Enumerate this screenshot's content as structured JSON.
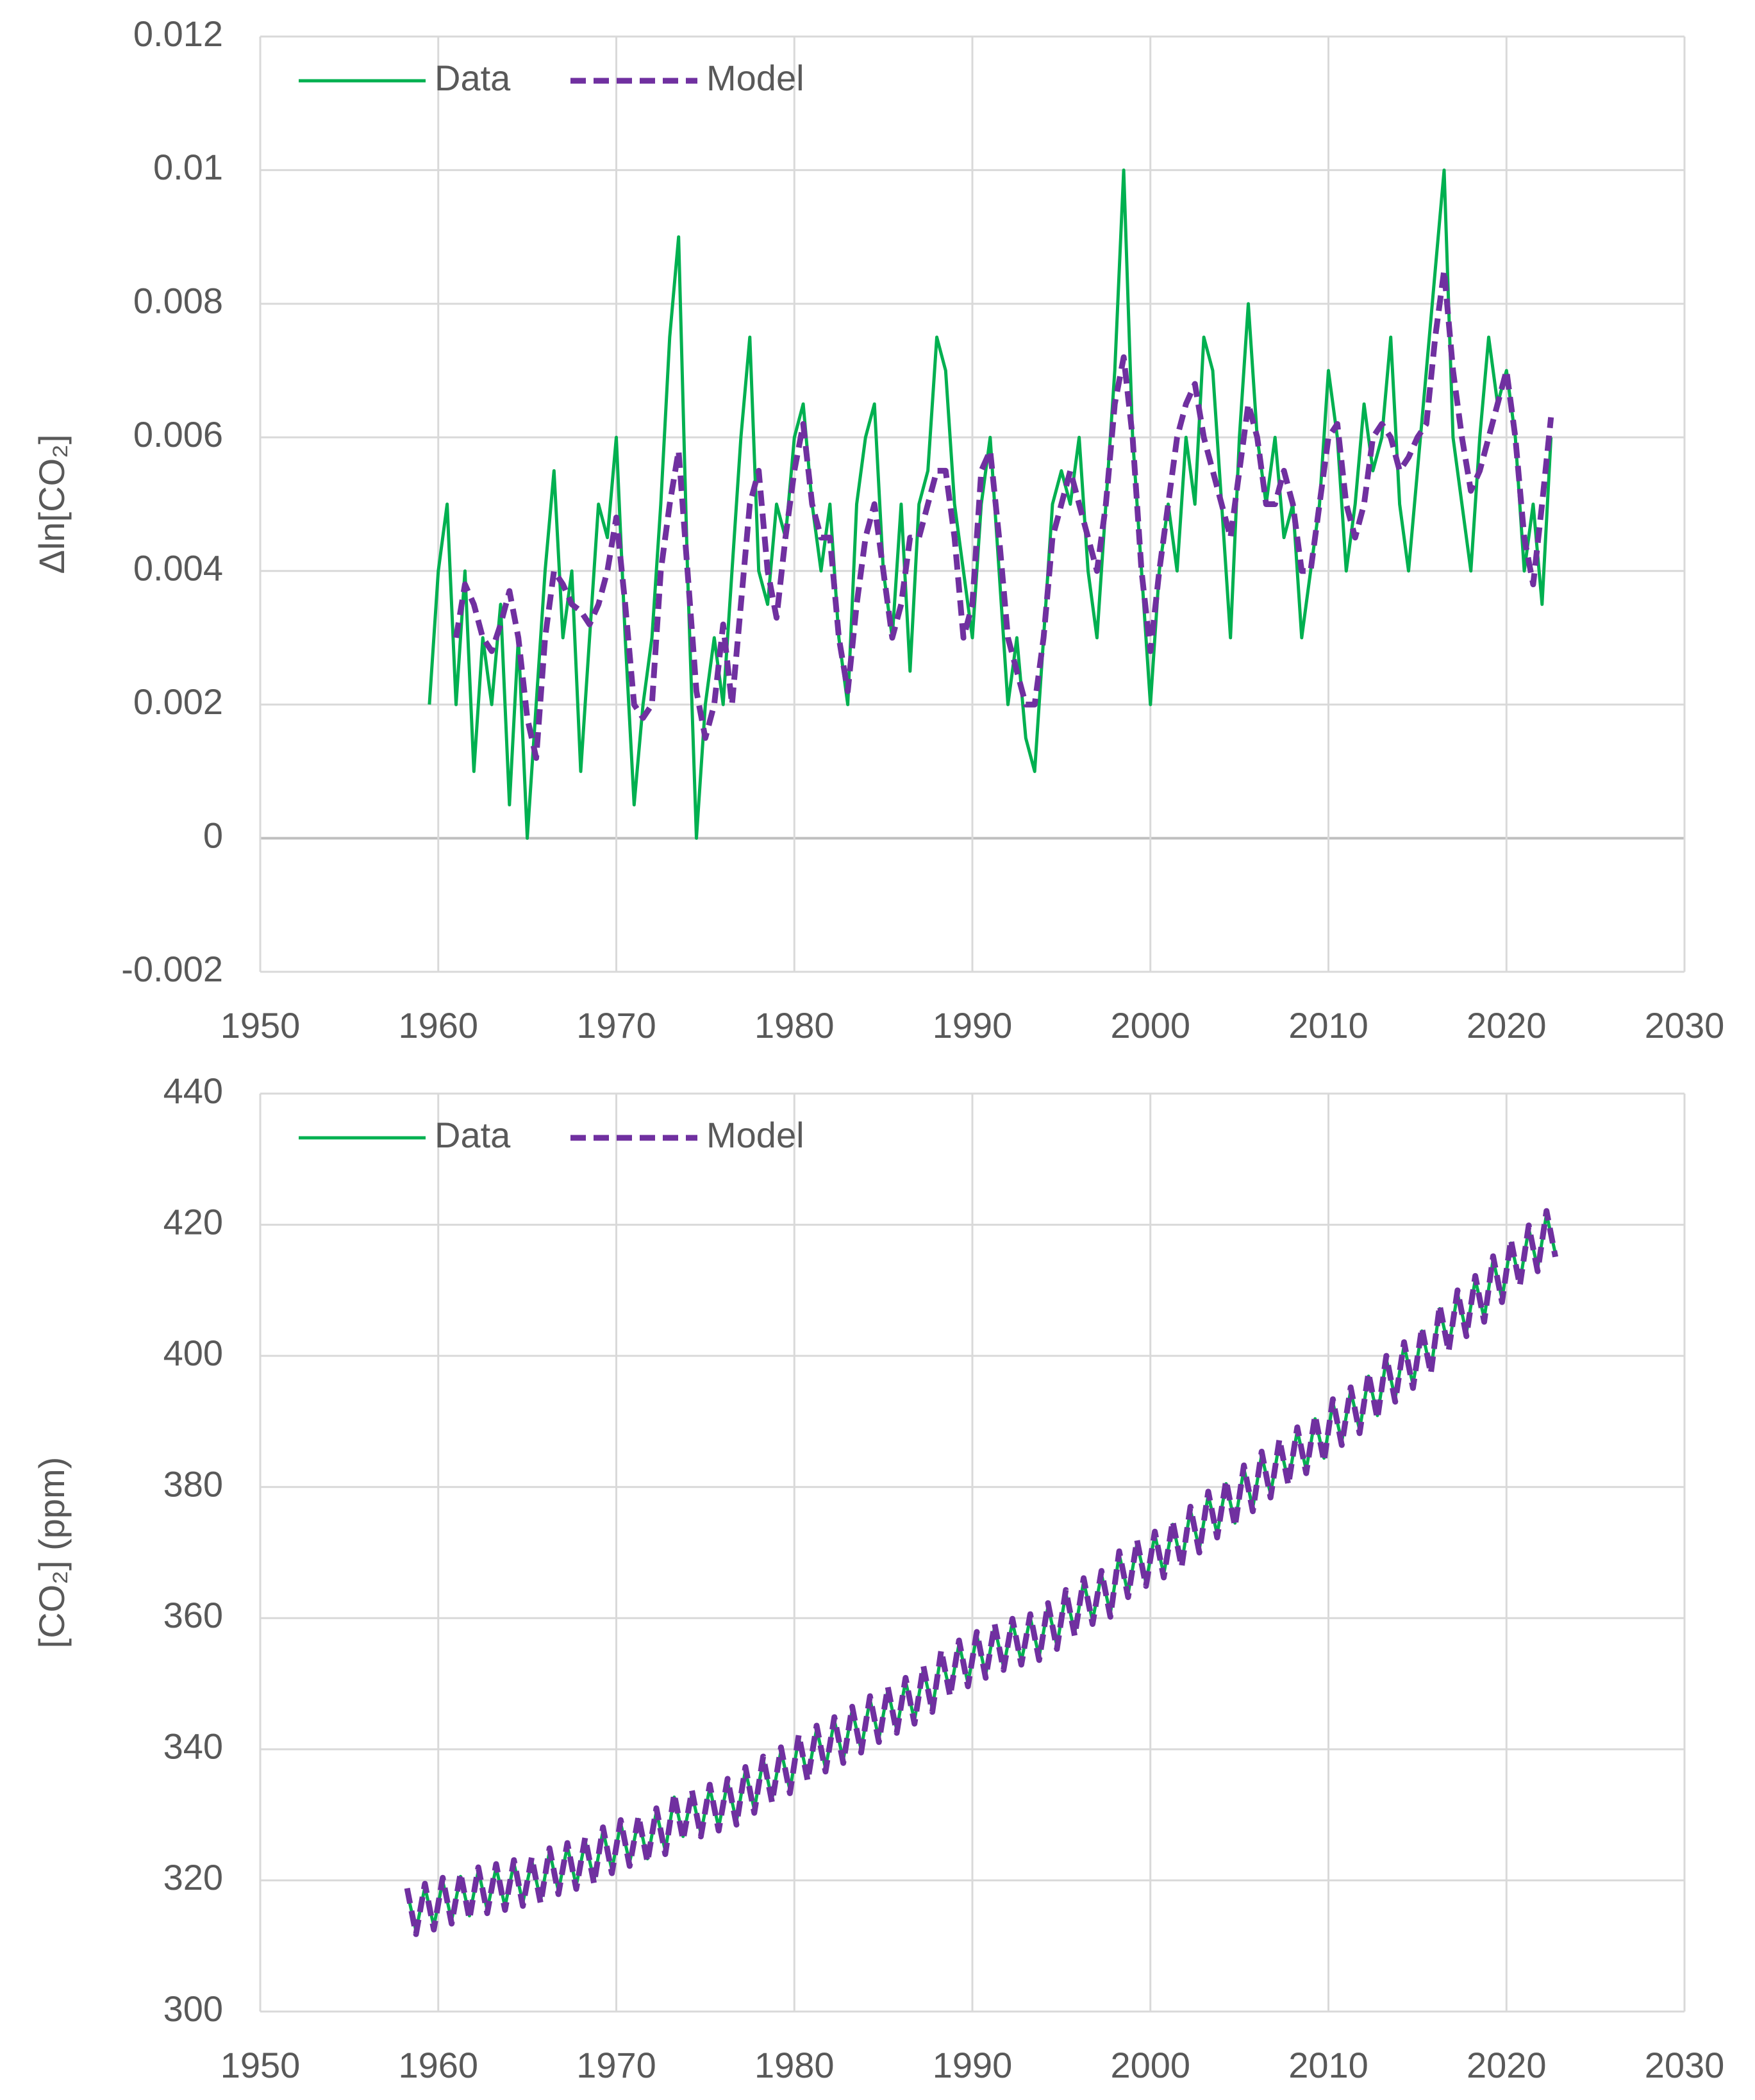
{
  "chart_data": [
    {
      "type": "line",
      "ylabel": "Δln[CO₂]",
      "x": [
        1959.5,
        1960.0,
        1960.5,
        1961.0,
        1961.5,
        1962.0,
        1962.5,
        1963.0,
        1963.5,
        1964.0,
        1964.5,
        1965.0,
        1965.5,
        1966.0,
        1966.5,
        1967.0,
        1967.5,
        1968.0,
        1968.5,
        1969.0,
        1969.5,
        1970.0,
        1970.5,
        1971.0,
        1971.5,
        1972.0,
        1972.5,
        1973.0,
        1973.5,
        1974.0,
        1974.5,
        1975.0,
        1975.5,
        1976.0,
        1976.5,
        1977.0,
        1977.5,
        1978.0,
        1978.5,
        1979.0,
        1979.5,
        1980.0,
        1980.5,
        1981.0,
        1981.5,
        1982.0,
        1982.5,
        1983.0,
        1983.5,
        1984.0,
        1984.5,
        1985.0,
        1985.5,
        1986.0,
        1986.5,
        1987.0,
        1987.5,
        1988.0,
        1988.5,
        1989.0,
        1989.5,
        1990.0,
        1990.5,
        1991.0,
        1991.5,
        1992.0,
        1992.5,
        1993.0,
        1993.5,
        1994.0,
        1994.5,
        1995.0,
        1995.5,
        1996.0,
        1996.5,
        1997.0,
        1997.5,
        1998.0,
        1998.5,
        1999.0,
        1999.5,
        2000.0,
        2000.5,
        2001.0,
        2001.5,
        2002.0,
        2002.5,
        2003.0,
        2003.5,
        2004.0,
        2004.5,
        2005.0,
        2005.5,
        2006.0,
        2006.5,
        2007.0,
        2007.5,
        2008.0,
        2008.5,
        2009.0,
        2009.5,
        2010.0,
        2010.5,
        2011.0,
        2011.5,
        2012.0,
        2012.5,
        2013.0,
        2013.5,
        2014.0,
        2014.5,
        2015.0,
        2015.5,
        2016.0,
        2016.5,
        2017.0,
        2017.5,
        2018.0,
        2018.5,
        2019.0,
        2019.5,
        2020.0,
        2020.5,
        2021.0,
        2021.5,
        2022.0,
        2022.5
      ],
      "series": [
        {
          "name": "Data",
          "color": "#00b050",
          "dashed": false,
          "values": [
            0.002,
            0.004,
            0.005,
            0.002,
            0.004,
            0.001,
            0.003,
            0.002,
            0.0035,
            0.0005,
            0.003,
            0.0,
            0.002,
            0.004,
            0.0055,
            0.003,
            0.004,
            0.001,
            0.003,
            0.005,
            0.0045,
            0.006,
            0.003,
            0.0005,
            0.002,
            0.003,
            0.005,
            0.0075,
            0.009,
            0.004,
            0.0,
            0.002,
            0.003,
            0.002,
            0.004,
            0.006,
            0.0075,
            0.004,
            0.0035,
            0.005,
            0.0045,
            0.006,
            0.0065,
            0.005,
            0.004,
            0.005,
            0.003,
            0.002,
            0.005,
            0.006,
            0.0065,
            0.004,
            0.003,
            0.005,
            0.0025,
            0.005,
            0.0055,
            0.0075,
            0.007,
            0.005,
            0.004,
            0.003,
            0.005,
            0.006,
            0.004,
            0.002,
            0.003,
            0.0015,
            0.001,
            0.003,
            0.005,
            0.0055,
            0.005,
            0.006,
            0.004,
            0.003,
            0.005,
            0.007,
            0.01,
            0.006,
            0.004,
            0.002,
            0.004,
            0.005,
            0.004,
            0.006,
            0.005,
            0.0075,
            0.007,
            0.005,
            0.003,
            0.006,
            0.008,
            0.006,
            0.005,
            0.006,
            0.0045,
            0.005,
            0.003,
            0.004,
            0.005,
            0.007,
            0.006,
            0.004,
            0.005,
            0.0065,
            0.0055,
            0.006,
            0.0075,
            0.005,
            0.004,
            0.0055,
            0.007,
            0.0085,
            0.01,
            0.006,
            0.005,
            0.004,
            0.006,
            0.0075,
            0.0065,
            0.007,
            0.006,
            0.004,
            0.005,
            0.0035,
            0.006
          ]
        },
        {
          "name": "Model",
          "color": "#7030a0",
          "dashed": true,
          "values": [
            null,
            null,
            null,
            0.003,
            0.0038,
            0.0035,
            0.003,
            0.0028,
            0.0032,
            0.0037,
            0.003,
            0.0018,
            0.0012,
            0.003,
            0.004,
            0.0038,
            0.0035,
            0.0034,
            0.0032,
            0.0035,
            0.004,
            0.0048,
            0.0035,
            0.002,
            0.0018,
            0.002,
            0.004,
            0.005,
            0.0058,
            0.004,
            0.0022,
            0.0015,
            0.002,
            0.0032,
            0.002,
            0.0035,
            0.005,
            0.0055,
            0.004,
            0.0033,
            0.0045,
            0.0055,
            0.0062,
            0.005,
            0.0045,
            0.0045,
            0.003,
            0.0022,
            0.0035,
            0.0045,
            0.005,
            0.004,
            0.003,
            0.0035,
            0.0045,
            0.0045,
            0.005,
            0.0055,
            0.0055,
            0.0045,
            0.003,
            0.0035,
            0.0055,
            0.0058,
            0.0045,
            0.003,
            0.0025,
            0.002,
            0.002,
            0.003,
            0.0045,
            0.005,
            0.0055,
            0.005,
            0.0045,
            0.004,
            0.005,
            0.0065,
            0.0072,
            0.006,
            0.004,
            0.0028,
            0.004,
            0.005,
            0.006,
            0.0065,
            0.0068,
            0.006,
            0.0055,
            0.005,
            0.0045,
            0.0055,
            0.0065,
            0.006,
            0.005,
            0.005,
            0.0055,
            0.005,
            0.004,
            0.004,
            0.005,
            0.006,
            0.0062,
            0.005,
            0.0045,
            0.005,
            0.006,
            0.0062,
            0.006,
            0.0055,
            0.0057,
            0.006,
            0.0062,
            0.0075,
            0.0085,
            0.007,
            0.006,
            0.0052,
            0.0055,
            0.006,
            0.0065,
            0.007,
            0.006,
            0.0045,
            0.0038,
            0.005,
            0.0063
          ]
        }
      ],
      "xlim": [
        1950,
        2030
      ],
      "xticks": [
        1950,
        1960,
        1970,
        1980,
        1990,
        2000,
        2010,
        2020,
        2030
      ],
      "ylim": [
        -0.002,
        0.012
      ],
      "yticks": [
        -0.002,
        0,
        0.002,
        0.004,
        0.006,
        0.008,
        0.01,
        0.012
      ],
      "grid": true,
      "legend": "top-left"
    },
    {
      "type": "line",
      "ylabel": "[CO₂] (ppm)",
      "x": [
        1958.25,
        1958.75,
        1959.25,
        1959.75,
        1960.25,
        1960.75,
        1961.25,
        1961.75,
        1962.25,
        1962.75,
        1963.25,
        1963.75,
        1964.25,
        1964.75,
        1965.25,
        1965.75,
        1966.25,
        1966.75,
        1967.25,
        1967.75,
        1968.25,
        1968.75,
        1969.25,
        1969.75,
        1970.25,
        1970.75,
        1971.25,
        1971.75,
        1972.25,
        1972.75,
        1973.25,
        1973.75,
        1974.25,
        1974.75,
        1975.25,
        1975.75,
        1976.25,
        1976.75,
        1977.25,
        1977.75,
        1978.25,
        1978.75,
        1979.25,
        1979.75,
        1980.25,
        1980.75,
        1981.25,
        1981.75,
        1982.25,
        1982.75,
        1983.25,
        1983.75,
        1984.25,
        1984.75,
        1985.25,
        1985.75,
        1986.25,
        1986.75,
        1987.25,
        1987.75,
        1988.25,
        1988.75,
        1989.25,
        1989.75,
        1990.25,
        1990.75,
        1991.25,
        1991.75,
        1992.25,
        1992.75,
        1993.25,
        1993.75,
        1994.25,
        1994.75,
        1995.25,
        1995.75,
        1996.25,
        1996.75,
        1997.25,
        1997.75,
        1998.25,
        1998.75,
        1999.25,
        1999.75,
        2000.25,
        2000.75,
        2001.25,
        2001.75,
        2002.25,
        2002.75,
        2003.25,
        2003.75,
        2004.25,
        2004.75,
        2005.25,
        2005.75,
        2006.25,
        2006.75,
        2007.25,
        2007.75,
        2008.25,
        2008.75,
        2009.25,
        2009.75,
        2010.25,
        2010.75,
        2011.25,
        2011.75,
        2012.25,
        2012.75,
        2013.25,
        2013.75,
        2014.25,
        2014.75,
        2015.25,
        2015.75,
        2016.25,
        2016.75,
        2017.25,
        2017.75,
        2018.25,
        2018.75,
        2019.25,
        2019.75,
        2020.25,
        2020.75,
        2021.25,
        2021.75,
        2022.25,
        2022.75
      ],
      "series": [
        {
          "name": "Data",
          "color": "#00b050",
          "dashed": false,
          "values": [
            318.3,
            312.3,
            319.0,
            313.0,
            319.9,
            313.9,
            320.6,
            314.6,
            321.5,
            315.5,
            322.0,
            316.0,
            322.6,
            316.6,
            323.0,
            317.0,
            324.4,
            318.4,
            325.2,
            319.2,
            326.0,
            320.0,
            327.6,
            321.6,
            328.7,
            322.7,
            329.3,
            323.3,
            330.5,
            324.5,
            332.7,
            326.7,
            333.2,
            327.2,
            334.1,
            328.1,
            335.0,
            329.0,
            336.8,
            330.8,
            338.4,
            332.4,
            339.8,
            333.8,
            341.7,
            335.7,
            343.1,
            337.1,
            344.4,
            338.4,
            346.0,
            340.0,
            347.6,
            341.6,
            349.0,
            343.0,
            350.4,
            344.4,
            352.2,
            346.2,
            354.6,
            348.6,
            356.1,
            350.1,
            357.4,
            351.4,
            358.6,
            352.6,
            359.4,
            353.4,
            360.1,
            354.1,
            361.8,
            355.8,
            363.8,
            357.8,
            365.6,
            359.6,
            366.7,
            360.7,
            369.7,
            363.7,
            371.4,
            365.4,
            372.7,
            366.7,
            374.3,
            368.3,
            376.5,
            370.5,
            378.8,
            372.8,
            380.5,
            374.5,
            382.8,
            376.8,
            384.9,
            378.9,
            386.8,
            380.8,
            388.6,
            382.6,
            390.4,
            384.4,
            392.9,
            386.9,
            394.7,
            388.7,
            396.9,
            390.9,
            399.5,
            393.5,
            401.6,
            395.6,
            403.8,
            397.8,
            407.2,
            401.2,
            409.5,
            403.5,
            411.7,
            405.7,
            414.7,
            408.7,
            417.2,
            411.2,
            419.4,
            413.4,
            421.6,
            415.6
          ]
        },
        {
          "name": "Model",
          "color": "#7030a0",
          "dashed": true,
          "values": [
            318.8,
            311.8,
            319.5,
            312.5,
            320.4,
            313.4,
            321.1,
            314.1,
            322.0,
            315.0,
            322.5,
            315.5,
            323.1,
            316.1,
            323.5,
            316.5,
            324.9,
            317.9,
            325.7,
            318.7,
            326.5,
            319.5,
            328.1,
            321.1,
            329.2,
            322.2,
            329.8,
            322.8,
            331.0,
            324.0,
            333.2,
            326.2,
            333.7,
            326.7,
            334.6,
            327.6,
            335.5,
            328.5,
            337.3,
            330.3,
            338.9,
            331.9,
            340.3,
            333.3,
            342.2,
            335.2,
            343.6,
            336.6,
            344.9,
            337.9,
            346.5,
            339.5,
            348.1,
            341.1,
            349.5,
            342.5,
            350.9,
            343.9,
            352.7,
            345.7,
            355.1,
            348.1,
            356.6,
            349.6,
            357.9,
            350.9,
            359.1,
            352.1,
            359.9,
            352.9,
            360.6,
            353.6,
            362.3,
            355.3,
            364.3,
            357.3,
            366.1,
            359.1,
            367.2,
            360.2,
            370.2,
            363.2,
            371.9,
            364.9,
            373.2,
            366.2,
            374.8,
            367.8,
            377.0,
            370.0,
            379.3,
            372.3,
            381.0,
            374.0,
            383.3,
            376.3,
            385.4,
            378.4,
            387.3,
            380.3,
            389.1,
            382.1,
            390.9,
            383.9,
            393.4,
            386.4,
            395.2,
            388.2,
            397.4,
            390.4,
            400.0,
            393.0,
            402.1,
            395.1,
            404.3,
            397.3,
            407.7,
            400.7,
            410.0,
            403.0,
            412.2,
            405.2,
            415.2,
            408.2,
            417.7,
            410.7,
            419.9,
            412.9,
            422.1,
            415.1
          ]
        }
      ],
      "xlim": [
        1950,
        2030
      ],
      "xticks": [
        1950,
        1960,
        1970,
        1980,
        1990,
        2000,
        2010,
        2020,
        2030
      ],
      "ylim": [
        300,
        440
      ],
      "yticks": [
        300,
        320,
        340,
        360,
        380,
        400,
        420,
        440
      ],
      "grid": true,
      "legend": "top-left"
    }
  ]
}
